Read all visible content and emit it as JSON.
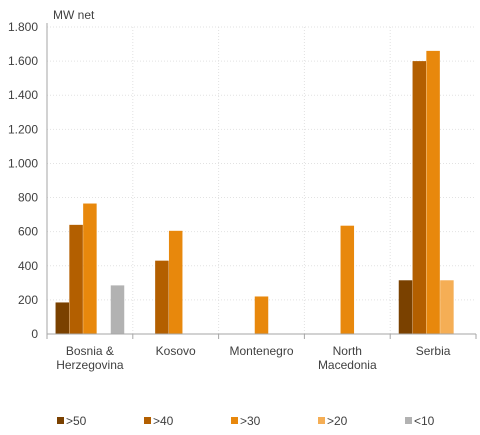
{
  "chart_data": {
    "type": "bar",
    "unit_label": "MW net",
    "categories": [
      [
        "Bosnia &",
        "Herzegovina"
      ],
      [
        "Kosovo"
      ],
      [
        "Montenegro"
      ],
      [
        "North",
        "Macedonia"
      ],
      [
        "Serbia"
      ]
    ],
    "series": [
      {
        "name": ">50",
        "color": "#7a4100",
        "values": [
          185,
          0,
          0,
          0,
          315
        ]
      },
      {
        "name": ">40",
        "color": "#b35f00",
        "values": [
          640,
          430,
          0,
          0,
          1600
        ]
      },
      {
        "name": ">30",
        "color": "#e8880c",
        "values": [
          765,
          605,
          220,
          635,
          1660
        ]
      },
      {
        "name": ">20",
        "color": "#f5ae55",
        "values": [
          0,
          0,
          0,
          0,
          315
        ]
      },
      {
        "name": "<10",
        "color": "#b2b2b2",
        "values": [
          285,
          0,
          0,
          0,
          0
        ]
      }
    ],
    "ylim": [
      0,
      1800
    ],
    "yticks": [
      0,
      200,
      400,
      600,
      800,
      1000,
      1200,
      1400,
      1600,
      1800
    ],
    "ytick_labels": [
      "0",
      "200",
      "400",
      "600",
      "800",
      "1.000",
      "1.200",
      "1.400",
      "1.600",
      "1.800"
    ],
    "grid": true,
    "legend_position": "bottom"
  }
}
